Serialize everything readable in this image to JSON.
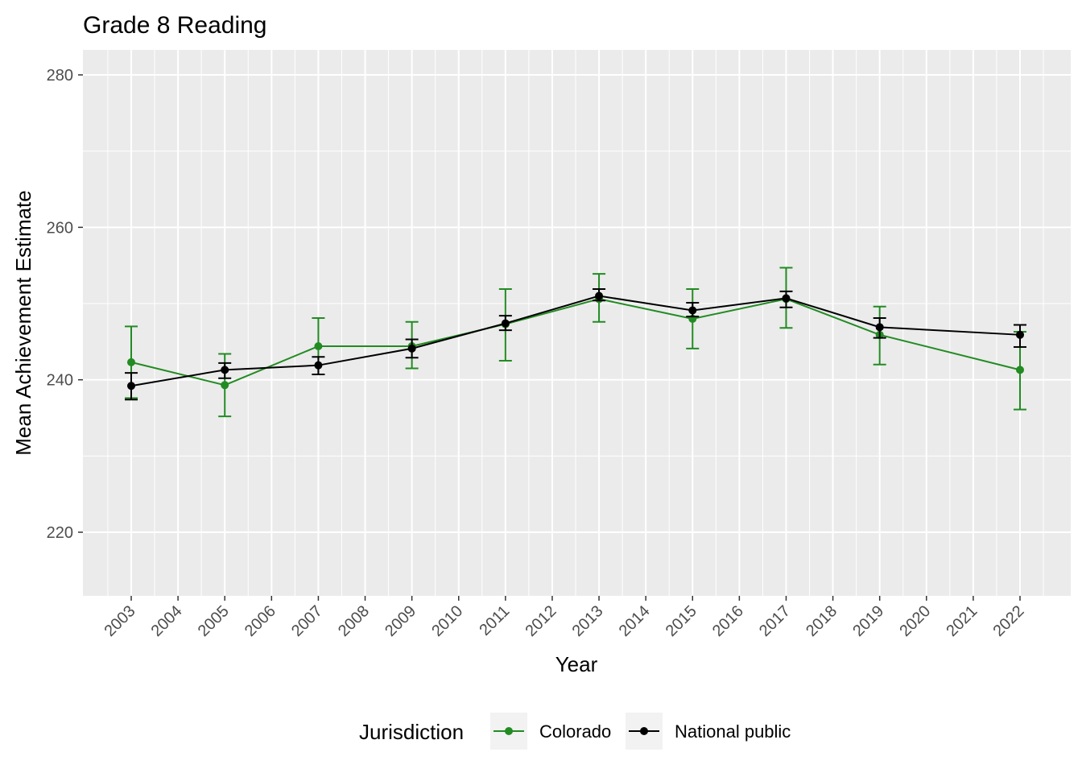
{
  "chart_data": {
    "type": "line",
    "title": "Grade 8 Reading",
    "xlabel": "Year",
    "ylabel": "Mean Achievement Estimate",
    "x_ticks": [
      "2003",
      "2004",
      "2005",
      "2006",
      "2007",
      "2008",
      "2009",
      "2010",
      "2011",
      "2012",
      "2013",
      "2014",
      "2015",
      "2016",
      "2017",
      "2018",
      "2019",
      "2020",
      "2021",
      "2022"
    ],
    "y_ticks": [
      220,
      240,
      260,
      280
    ],
    "ylim": [
      211.8,
      283.3
    ],
    "grid": true,
    "legend": {
      "title": "Jurisdiction",
      "position": "bottom"
    },
    "series": [
      {
        "name": "Colorado",
        "color": "#228B22",
        "x": [
          2003,
          2005,
          2007,
          2009,
          2011,
          2013,
          2015,
          2017,
          2019,
          2022
        ],
        "y": [
          242.3,
          239.3,
          244.4,
          244.4,
          247.3,
          250.6,
          248.0,
          250.6,
          245.9,
          241.3
        ],
        "lower": [
          237.6,
          235.2,
          240.7,
          241.5,
          242.5,
          247.6,
          244.1,
          246.8,
          242.0,
          236.1
        ],
        "upper": [
          247.0,
          243.4,
          248.1,
          247.6,
          251.9,
          253.9,
          251.9,
          254.7,
          249.6,
          246.3
        ]
      },
      {
        "name": "National public",
        "color": "#000000",
        "x": [
          2003,
          2005,
          2007,
          2009,
          2011,
          2013,
          2015,
          2017,
          2019,
          2022
        ],
        "y": [
          239.2,
          241.3,
          241.9,
          244.1,
          247.4,
          251.0,
          249.1,
          250.7,
          246.9,
          245.9
        ],
        "lower": [
          237.4,
          240.2,
          240.7,
          242.9,
          246.5,
          250.4,
          248.3,
          249.5,
          245.5,
          244.3
        ],
        "upper": [
          240.9,
          242.2,
          243.0,
          245.3,
          248.4,
          251.9,
          250.1,
          251.6,
          248.1,
          247.2
        ]
      }
    ]
  }
}
